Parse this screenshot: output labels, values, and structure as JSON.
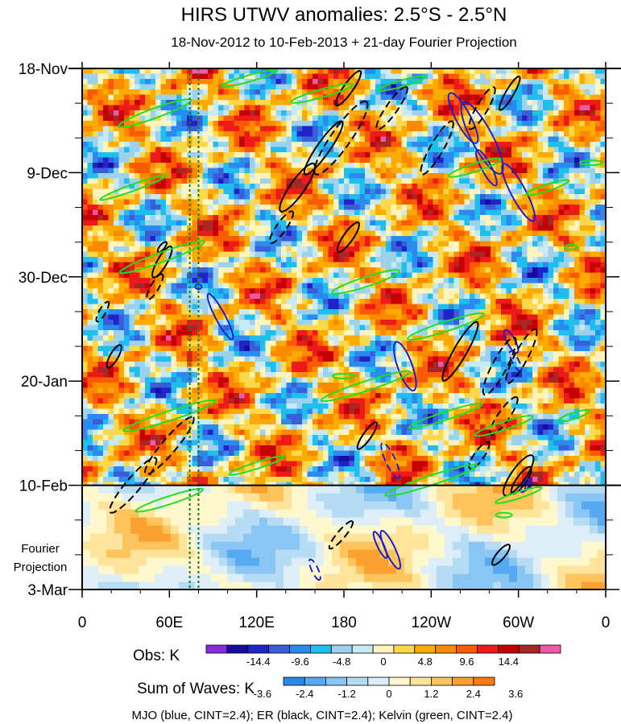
{
  "chart_data": {
    "type": "heatmap",
    "title": "HIRS UTWV anomalies: 2.5°S - 2.5°N",
    "subtitle": "18-Nov-2012 to 10-Feb-2013 + 21-day Fourier Projection",
    "x_axis": {
      "tick_labels": [
        "0",
        "60E",
        "120E",
        "180",
        "120W",
        "60W",
        "0"
      ],
      "tick_values_deg_east": [
        0,
        60,
        120,
        180,
        240,
        300,
        360
      ],
      "range": [
        0,
        360
      ]
    },
    "y_axis": {
      "tick_labels": [
        "18-Nov",
        "9-Dec",
        "30-Dec",
        "20-Jan",
        "10-Feb",
        "3-Mar"
      ],
      "tick_days_since_start": [
        0,
        21,
        42,
        63,
        84,
        105
      ],
      "range_days": [
        0,
        105
      ],
      "reversed": true
    },
    "projection_label": [
      "Fourier",
      "Projection"
    ],
    "observation_end_day": 84,
    "reference_longitudes_deg_east": [
      74,
      80
    ],
    "obs_colorbar": {
      "label": "Obs: K",
      "tick_labels": [
        "-14.4",
        "-9.6",
        "-4.8",
        "0",
        "4.8",
        "9.6",
        "14.4"
      ],
      "colors": [
        "#8a2be2",
        "#1a0aa0",
        "#1e24c8",
        "#3a5ed8",
        "#2a8af0",
        "#1ebeee",
        "#9cd2ee",
        "#c8eaf4",
        "#fff4be",
        "#fcd84a",
        "#fcac00",
        "#fc8a00",
        "#fc5a00",
        "#ee1a1a",
        "#c40000",
        "#a82626",
        "#ee5aa8"
      ]
    },
    "waves_colorbar": {
      "label": "Sum of Waves: K",
      "tick_labels": [
        "-3.6",
        "-2.4",
        "-1.2",
        "0",
        "1.2",
        "2.4",
        "3.6"
      ],
      "colors": [
        "#2a8ae8",
        "#56aaf2",
        "#8ac6f4",
        "#b6dcf4",
        "#deeef8",
        "#fff8cc",
        "#fde49a",
        "#fcc45a",
        "#fca030",
        "#f87a10"
      ]
    },
    "legend_text": "MJO (blue, CINT=2.4); ER (black, CINT=2.4); Kelvin (green, CINT=2.4)",
    "series_colors": {
      "mjo": "#1f1fd0",
      "er": "#000000",
      "kelvin": "#22dd22"
    }
  }
}
